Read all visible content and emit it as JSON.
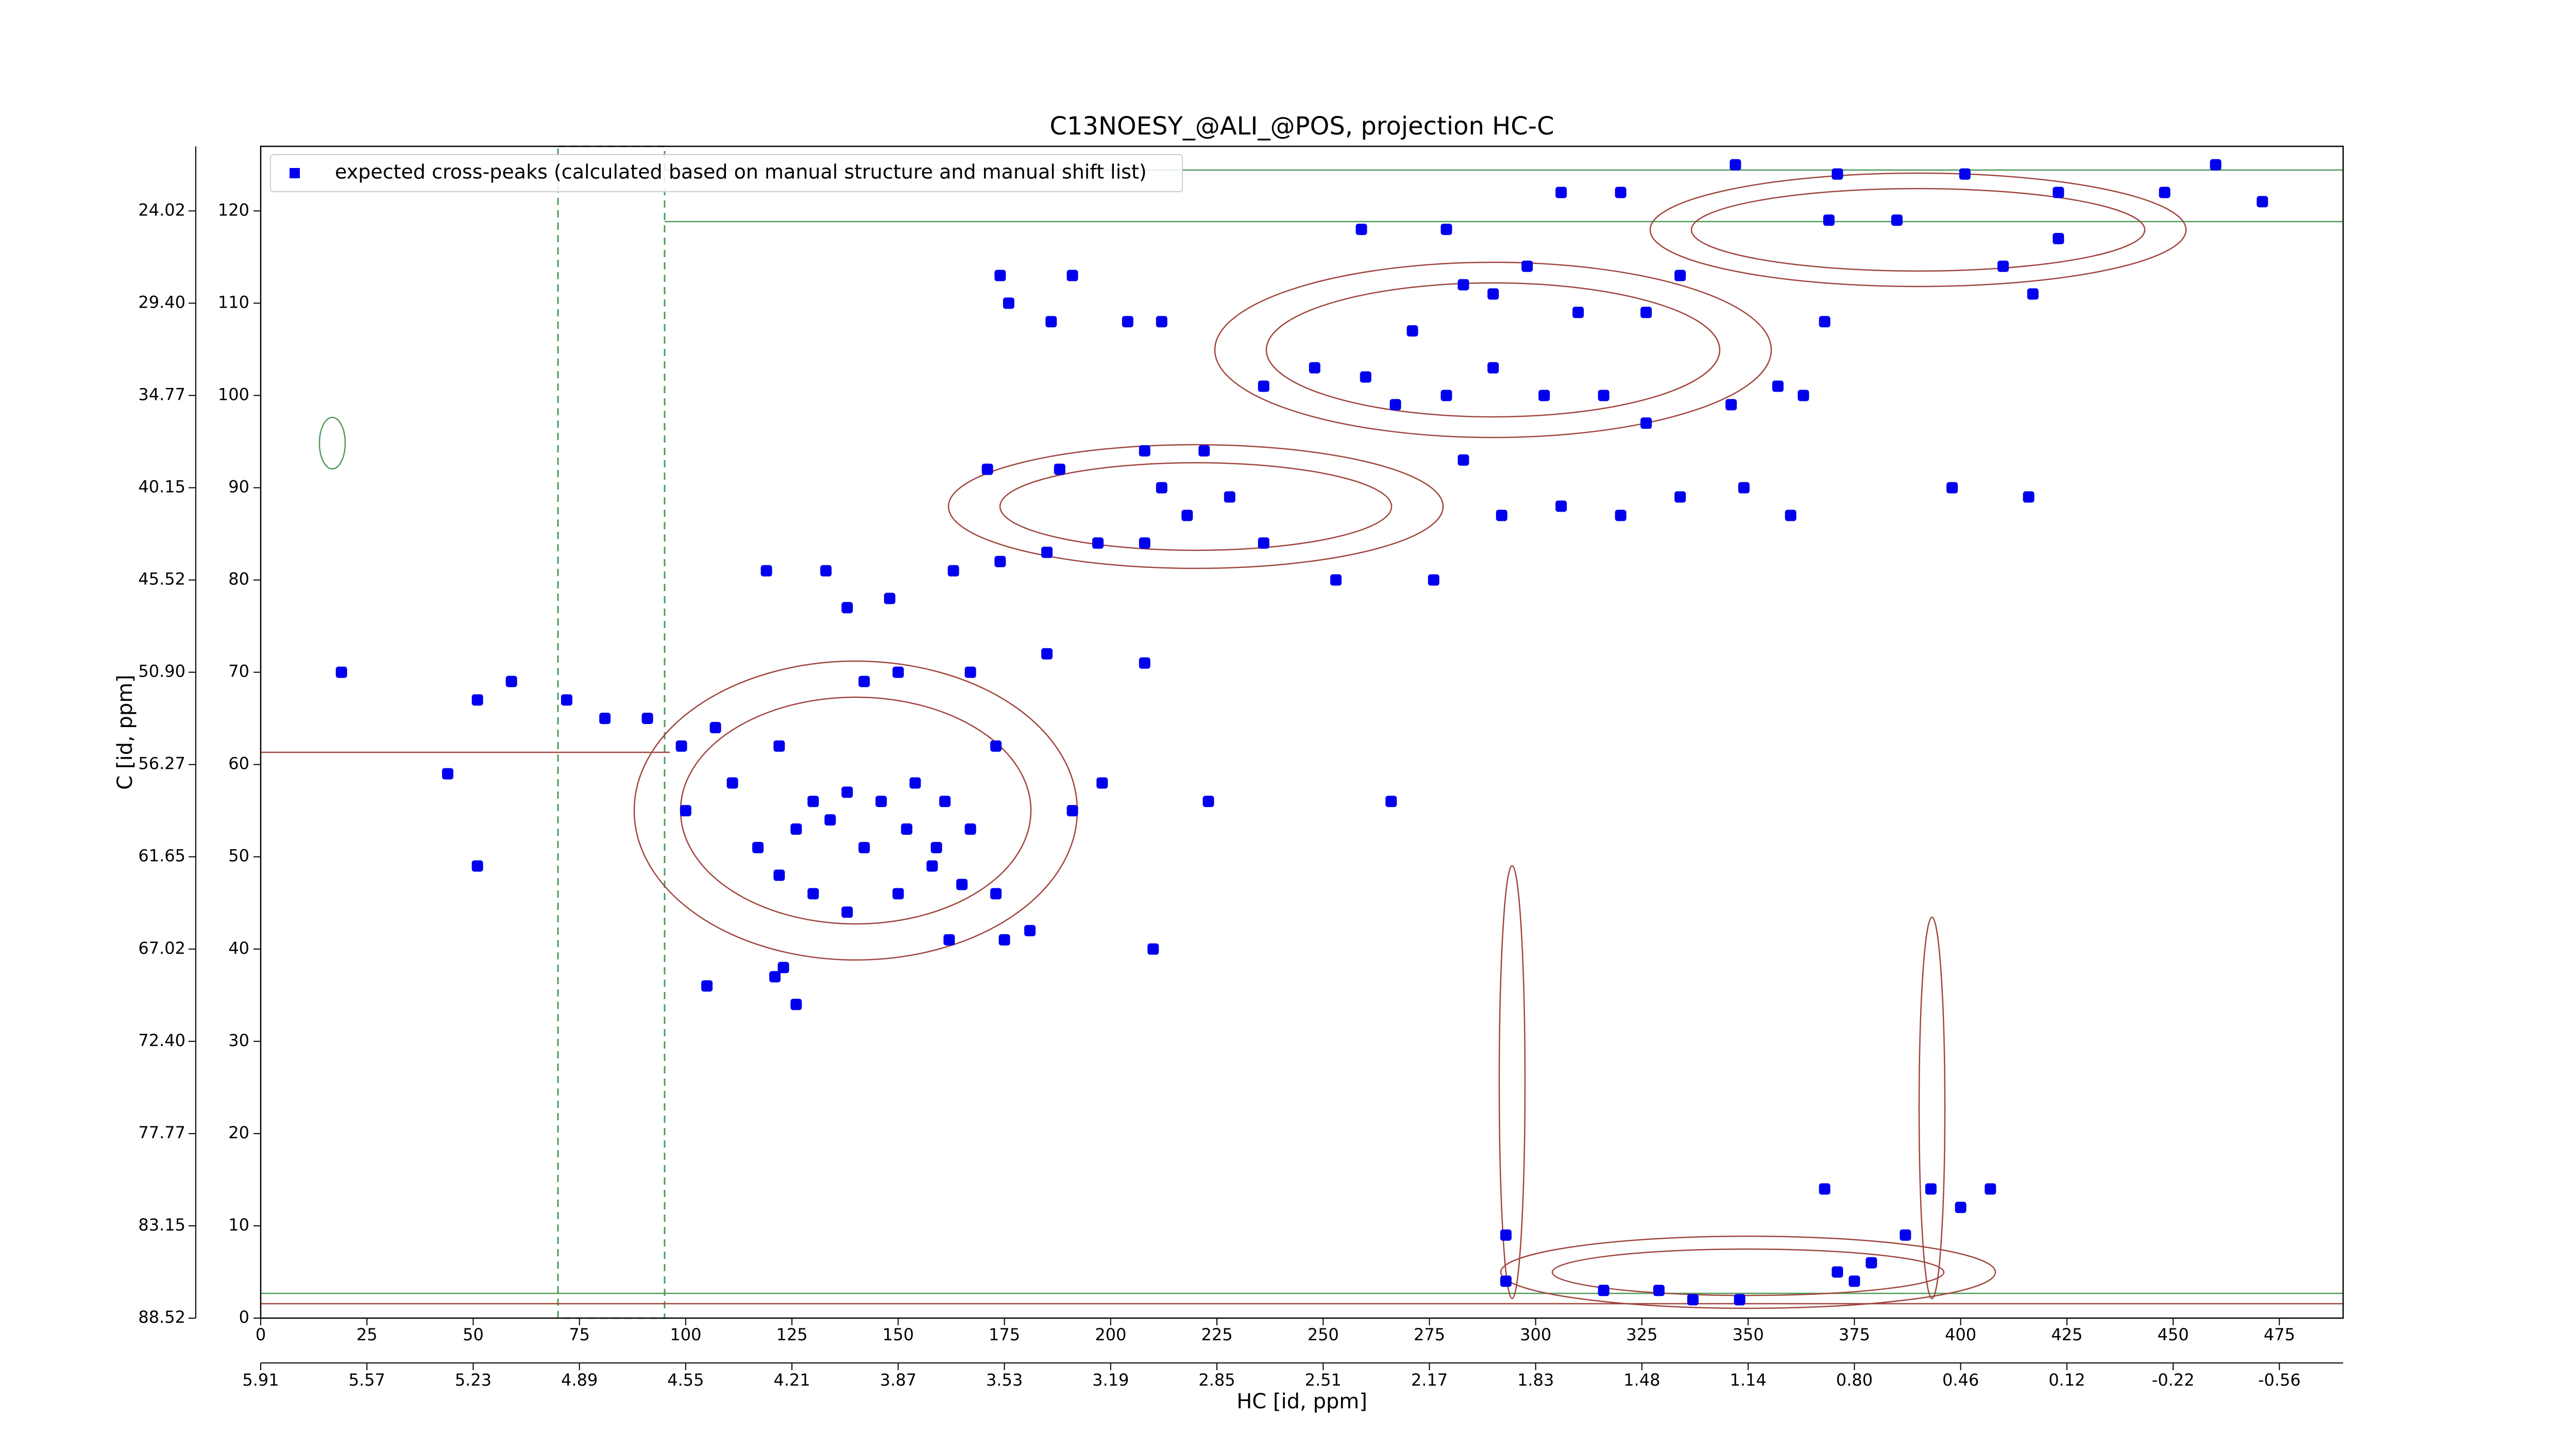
{
  "chart_data": {
    "type": "scatter",
    "title": "C13NOESY_@ALI_@POS, projection HC-C",
    "xlabel": "HC [id, ppm]",
    "ylabel": "C [id, ppm]",
    "xlim": [
      0,
      490
    ],
    "ylim": [
      0,
      127
    ],
    "xticks": [
      0,
      25,
      50,
      75,
      100,
      125,
      150,
      175,
      200,
      225,
      250,
      275,
      300,
      325,
      350,
      375,
      400,
      425,
      450,
      475
    ],
    "yticks": [
      0,
      10,
      20,
      30,
      40,
      50,
      60,
      70,
      80,
      90,
      100,
      110,
      120
    ],
    "x2ticks": [
      {
        "value": 0,
        "label": "5.91"
      },
      {
        "value": 25,
        "label": "5.57"
      },
      {
        "value": 50,
        "label": "5.23"
      },
      {
        "value": 75,
        "label": "4.89"
      },
      {
        "value": 100,
        "label": "4.55"
      },
      {
        "value": 125,
        "label": "4.21"
      },
      {
        "value": 150,
        "label": "3.87"
      },
      {
        "value": 175,
        "label": "3.53"
      },
      {
        "value": 200,
        "label": "3.19"
      },
      {
        "value": 225,
        "label": "2.85"
      },
      {
        "value": 250,
        "label": "2.51"
      },
      {
        "value": 275,
        "label": "2.17"
      },
      {
        "value": 300,
        "label": "1.83"
      },
      {
        "value": 325,
        "label": "1.48"
      },
      {
        "value": 350,
        "label": "1.14"
      },
      {
        "value": 375,
        "label": "0.80"
      },
      {
        "value": 400,
        "label": "0.46"
      },
      {
        "value": 425,
        "label": "0.12"
      },
      {
        "value": 450,
        "label": "-0.22"
      },
      {
        "value": 475,
        "label": "-0.56"
      }
    ],
    "y2ticks": [
      {
        "value": 0,
        "label": "88.52"
      },
      {
        "value": 10,
        "label": "83.15"
      },
      {
        "value": 20,
        "label": "77.77"
      },
      {
        "value": 30,
        "label": "72.40"
      },
      {
        "value": 40,
        "label": "67.02"
      },
      {
        "value": 50,
        "label": "61.65"
      },
      {
        "value": 60,
        "label": "56.27"
      },
      {
        "value": 70,
        "label": "50.90"
      },
      {
        "value": 80,
        "label": "45.52"
      },
      {
        "value": 90,
        "label": "40.15"
      },
      {
        "value": 100,
        "label": "34.77"
      },
      {
        "value": 110,
        "label": "29.40"
      },
      {
        "value": 120,
        "label": "24.02"
      }
    ],
    "legend": "upper left",
    "series": [
      {
        "name": "expected cross-peaks (calculated based on manual structure and manual shift list)",
        "color": "#0000ee",
        "x": [
          347,
          371,
          401,
          460,
          471,
          448,
          423,
          423,
          417,
          410,
          385,
          369,
          290,
          283,
          298,
          310,
          326,
          334,
          271,
          260,
          248,
          236,
          267,
          279,
          290,
          302,
          316,
          326,
          283,
          292,
          306,
          320,
          334,
          349,
          360,
          398,
          416,
          346,
          363,
          174,
          176,
          191,
          186,
          204,
          212,
          259,
          279,
          306,
          320,
          208,
          222,
          212,
          228,
          236,
          218,
          208,
          197,
          188,
          171,
          185,
          174,
          163,
          133,
          148,
          138,
          119,
          253,
          276,
          19,
          44,
          51,
          51,
          59,
          72,
          81,
          91,
          99,
          107,
          111,
          122,
          130,
          138,
          146,
          154,
          161,
          126,
          134,
          142,
          152,
          159,
          167,
          117,
          122,
          130,
          138,
          150,
          158,
          165,
          173,
          181,
          191,
          198,
          173,
          167,
          142,
          150,
          185,
          208,
          223,
          266,
          100,
          105,
          121,
          126,
          123,
          210,
          175,
          162,
          293,
          293,
          316,
          329,
          337,
          348,
          368,
          371,
          375,
          379,
          393,
          400,
          407,
          387,
          368,
          357
        ],
        "y": [
          125,
          124,
          124,
          125,
          121,
          122,
          122,
          117,
          111,
          114,
          119,
          119,
          111,
          112,
          114,
          109,
          109,
          113,
          107,
          102,
          103,
          101,
          99,
          100,
          103,
          100,
          100,
          97,
          93,
          87,
          88,
          87,
          89,
          90,
          87,
          90,
          89,
          99,
          100,
          113,
          110,
          113,
          108,
          108,
          108,
          118,
          118,
          122,
          122,
          94,
          94,
          90,
          89,
          84,
          87,
          84,
          84,
          92,
          92,
          83,
          82,
          81,
          81,
          78,
          77,
          81,
          80,
          80,
          70,
          59,
          67,
          49,
          69,
          67,
          65,
          65,
          62,
          64,
          58,
          62,
          56,
          57,
          56,
          58,
          56,
          53,
          54,
          51,
          53,
          51,
          53,
          51,
          48,
          46,
          44,
          46,
          49,
          47,
          46,
          42,
          55,
          58,
          62,
          70,
          69,
          70,
          72,
          71,
          56,
          56,
          55,
          36,
          37,
          34,
          38,
          40,
          41,
          41,
          9,
          4,
          3,
          3,
          2,
          2,
          14,
          5,
          4,
          6,
          14,
          12,
          14,
          9,
          108,
          101
        ]
      }
    ]
  }
}
